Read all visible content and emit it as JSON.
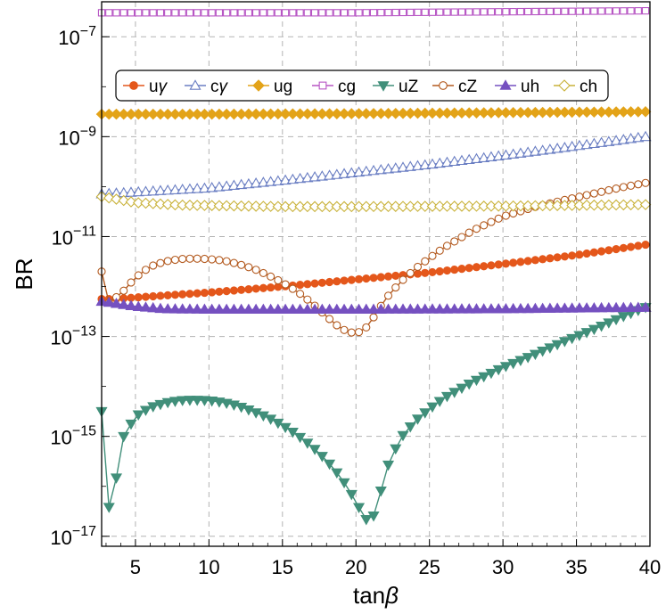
{
  "chart_data": {
    "type": "line",
    "xlabel": "tanβ",
    "ylabel": "BR",
    "xlim": [
      2.7,
      40
    ],
    "ylim_log10": [
      -17.2,
      -6.3
    ],
    "x_ticks": [
      5,
      10,
      15,
      20,
      25,
      30,
      35,
      40
    ],
    "x_tick_labels": [
      "5",
      "10",
      "15",
      "20",
      "25",
      "30",
      "35",
      "40"
    ],
    "y_ticks_log10": [
      -7,
      -9,
      -11,
      -13,
      -15,
      -17
    ],
    "y_tick_labels": [
      {
        "base": "10",
        "exp": "−7"
      },
      {
        "base": "10",
        "exp": "−9"
      },
      {
        "base": "10",
        "exp": "−11"
      },
      {
        "base": "10",
        "exp": "−13"
      },
      {
        "base": "10",
        "exp": "−15"
      },
      {
        "base": "10",
        "exp": "−17"
      }
    ],
    "grid": true,
    "legend_position": "top",
    "series": [
      {
        "name": "uγ",
        "legend_main": "u",
        "legend_sym": "γ",
        "color": "#E4571B",
        "marker": "circle-filled",
        "points_log10": [
          [
            2.7,
            -12.25
          ],
          [
            3.5,
            -12.25
          ],
          [
            10,
            -12.12
          ],
          [
            15,
            -12.0
          ],
          [
            20,
            -11.86
          ],
          [
            25,
            -11.72
          ],
          [
            30,
            -11.55
          ],
          [
            35,
            -11.37
          ],
          [
            40,
            -11.15
          ]
        ]
      },
      {
        "name": "cγ",
        "legend_main": "c",
        "legend_sym": "γ",
        "color": "#6B7FC3",
        "marker": "triangle-up-open",
        "points_log10": [
          [
            2.7,
            -10.15
          ],
          [
            10,
            -10.03
          ],
          [
            15,
            -9.88
          ],
          [
            20,
            -9.72
          ],
          [
            25,
            -9.56
          ],
          [
            30,
            -9.38
          ],
          [
            35,
            -9.19
          ],
          [
            40,
            -8.99
          ]
        ]
      },
      {
        "name": "ug",
        "legend_main": "ug",
        "legend_sym": "",
        "color": "#E3A318",
        "marker": "diamond-filled",
        "points_log10": [
          [
            2.7,
            -8.55
          ],
          [
            10,
            -8.55
          ],
          [
            20,
            -8.54
          ],
          [
            30,
            -8.52
          ],
          [
            40,
            -8.5
          ]
        ]
      },
      {
        "name": "cg",
        "legend_main": "cg",
        "legend_sym": "",
        "color": "#B755C4",
        "marker": "square-open",
        "points_log10": [
          [
            2.7,
            -6.52
          ],
          [
            20,
            -6.52
          ],
          [
            40,
            -6.48
          ]
        ]
      },
      {
        "name": "uZ",
        "legend_main": "uZ",
        "legend_sym": "",
        "color": "#418F7A",
        "marker": "triangle-down-filled",
        "points_log10": [
          [
            2.7,
            -14.5
          ],
          [
            3.3,
            -16.8
          ],
          [
            4.0,
            -15.1
          ],
          [
            5.0,
            -14.6
          ],
          [
            6.0,
            -14.42
          ],
          [
            7.0,
            -14.33
          ],
          [
            8.0,
            -14.28
          ],
          [
            9.0,
            -14.27
          ],
          [
            10.0,
            -14.28
          ],
          [
            11.0,
            -14.32
          ],
          [
            12.0,
            -14.39
          ],
          [
            13.0,
            -14.5
          ],
          [
            14.0,
            -14.62
          ],
          [
            15.0,
            -14.78
          ],
          [
            16.0,
            -14.97
          ],
          [
            17.0,
            -15.2
          ],
          [
            18.0,
            -15.48
          ],
          [
            19.0,
            -15.83
          ],
          [
            20.0,
            -16.3
          ],
          [
            20.5,
            -16.6
          ],
          [
            21.0,
            -16.75
          ],
          [
            21.5,
            -16.35
          ],
          [
            22.0,
            -15.7
          ],
          [
            23.0,
            -15.05
          ],
          [
            24.0,
            -14.7
          ],
          [
            25.0,
            -14.45
          ],
          [
            26.0,
            -14.23
          ],
          [
            28.0,
            -13.9
          ],
          [
            30.0,
            -13.62
          ],
          [
            32.0,
            -13.38
          ],
          [
            34.0,
            -13.12
          ],
          [
            36.0,
            -12.88
          ],
          [
            38.0,
            -12.62
          ],
          [
            40.0,
            -12.38
          ]
        ]
      },
      {
        "name": "cZ",
        "legend_main": "cZ",
        "legend_sym": "",
        "color": "#B35A1F",
        "marker": "circle-open",
        "points_log10": [
          [
            2.7,
            -11.7
          ],
          [
            3.2,
            -12.32
          ],
          [
            4.0,
            -12.15
          ],
          [
            5.0,
            -11.82
          ],
          [
            6.0,
            -11.6
          ],
          [
            7.0,
            -11.5
          ],
          [
            8.0,
            -11.45
          ],
          [
            9.0,
            -11.44
          ],
          [
            10.0,
            -11.45
          ],
          [
            11.0,
            -11.48
          ],
          [
            12.0,
            -11.55
          ],
          [
            13.0,
            -11.64
          ],
          [
            14.0,
            -11.77
          ],
          [
            15.0,
            -11.92
          ],
          [
            16.0,
            -12.1
          ],
          [
            17.0,
            -12.33
          ],
          [
            18.0,
            -12.6
          ],
          [
            19.0,
            -12.85
          ],
          [
            20.0,
            -12.95
          ],
          [
            20.8,
            -12.8
          ],
          [
            22.0,
            -12.25
          ],
          [
            23.0,
            -11.92
          ],
          [
            24.0,
            -11.65
          ],
          [
            25.0,
            -11.43
          ],
          [
            26.0,
            -11.22
          ],
          [
            28.0,
            -10.87
          ],
          [
            30.0,
            -10.6
          ],
          [
            32.0,
            -10.42
          ],
          [
            34.0,
            -10.28
          ],
          [
            36.0,
            -10.15
          ],
          [
            38.0,
            -10.02
          ],
          [
            40.0,
            -9.91
          ]
        ]
      },
      {
        "name": "uh",
        "legend_main": "uh",
        "legend_sym": "",
        "color": "#7550C0",
        "marker": "triangle-up-filled",
        "points_log10": [
          [
            2.7,
            -12.3
          ],
          [
            5.0,
            -12.4
          ],
          [
            7.0,
            -12.45
          ],
          [
            10.0,
            -12.46
          ],
          [
            20.0,
            -12.46
          ],
          [
            30.0,
            -12.45
          ],
          [
            40.0,
            -12.42
          ]
        ]
      },
      {
        "name": "ch",
        "legend_main": "ch",
        "legend_sym": "",
        "color": "#C9B23A",
        "marker": "diamond-open",
        "points_log10": [
          [
            2.7,
            -10.2
          ],
          [
            5.0,
            -10.32
          ],
          [
            8.0,
            -10.37
          ],
          [
            15.0,
            -10.4
          ],
          [
            20.0,
            -10.4
          ],
          [
            30.0,
            -10.39
          ],
          [
            40.0,
            -10.36
          ]
        ]
      }
    ]
  }
}
